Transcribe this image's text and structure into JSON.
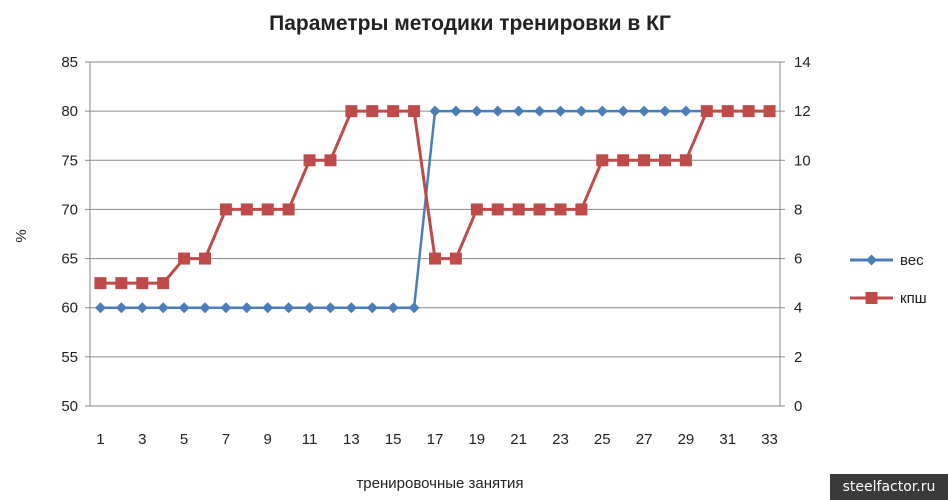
{
  "chart_data": {
    "type": "line",
    "title": "Параметры методики тренировки в КГ",
    "xlabel": "тренировочные занятия",
    "ylabel": "%",
    "x": [
      1,
      2,
      3,
      4,
      5,
      6,
      7,
      8,
      9,
      10,
      11,
      12,
      13,
      14,
      15,
      16,
      17,
      18,
      19,
      20,
      21,
      22,
      23,
      24,
      25,
      26,
      27,
      28,
      29,
      30,
      31,
      32,
      33
    ],
    "x_tick_labels": [
      "1",
      "3",
      "5",
      "7",
      "9",
      "11",
      "13",
      "15",
      "17",
      "19",
      "21",
      "23",
      "25",
      "27",
      "29",
      "31",
      "33"
    ],
    "ylim": [
      50,
      85
    ],
    "y_ticks": [
      50,
      55,
      60,
      65,
      70,
      75,
      80,
      85
    ],
    "y2lim": [
      0,
      14
    ],
    "y2_ticks": [
      0,
      2,
      4,
      6,
      8,
      10,
      12,
      14
    ],
    "grid": "horizontal",
    "legend_position": "right",
    "series": [
      {
        "name": "вес",
        "axis": "left",
        "color": "#4a7ebb",
        "marker": "diamond",
        "values": [
          60,
          60,
          60,
          60,
          60,
          60,
          60,
          60,
          60,
          60,
          60,
          60,
          60,
          60,
          60,
          60,
          80,
          80,
          80,
          80,
          80,
          80,
          80,
          80,
          80,
          80,
          80,
          80,
          80,
          80,
          80,
          80,
          80
        ]
      },
      {
        "name": "кпш",
        "axis": "right",
        "color": "#be4b48",
        "marker": "square",
        "values": [
          5,
          5,
          5,
          5,
          6,
          6,
          8,
          8,
          8,
          8,
          10,
          10,
          12,
          12,
          12,
          12,
          6,
          6,
          8,
          8,
          8,
          8,
          8,
          8,
          10,
          10,
          10,
          10,
          10,
          12,
          12,
          12,
          12
        ]
      }
    ]
  },
  "watermark": "steelfactor.ru"
}
